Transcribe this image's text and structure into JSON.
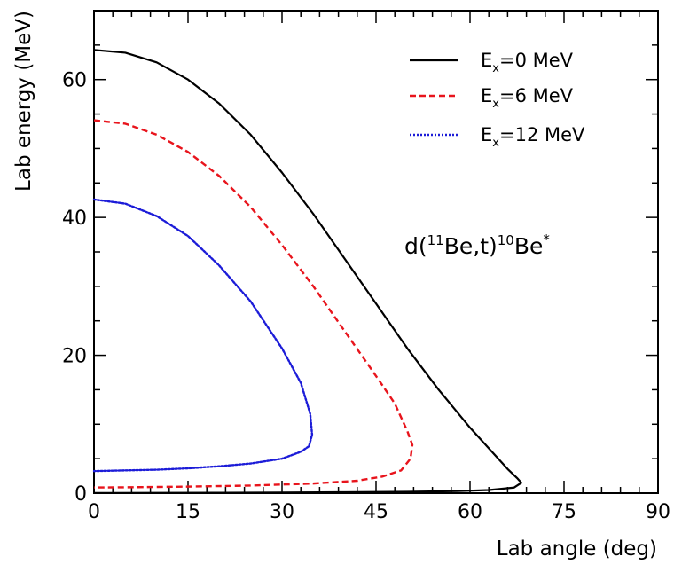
{
  "chart_data": {
    "type": "line",
    "xlabel": "Lab angle (deg)",
    "ylabel": "Lab energy (MeV)",
    "xlim": [
      0,
      90
    ],
    "ylim": [
      0,
      70
    ],
    "x_ticks": [
      0,
      15,
      30,
      45,
      60,
      75,
      90
    ],
    "y_ticks": [
      0,
      20,
      40,
      60
    ],
    "x_tick_labels": [
      "0",
      "15",
      "30",
      "45",
      "60",
      "75",
      "90"
    ],
    "y_tick_labels": [
      "0",
      "20",
      "40",
      "60"
    ],
    "grid": false,
    "legend_position": "top-right",
    "annotation": {
      "prefix": "d(",
      "projectile_mass": "11",
      "projectile": "Be,t)",
      "residual_mass": "10",
      "residual": "Be",
      "excited_mark": "*"
    },
    "series": [
      {
        "legend_main": "E",
        "legend_sub": "x",
        "legend_rest": "=0 MeV",
        "color": "#000000",
        "line_style": "solid",
        "points": [
          [
            0,
            64.3
          ],
          [
            5,
            63.9
          ],
          [
            10,
            62.5
          ],
          [
            15,
            60.0
          ],
          [
            20,
            56.5
          ],
          [
            25,
            52.0
          ],
          [
            30,
            46.5
          ],
          [
            35,
            40.5
          ],
          [
            40,
            34.0
          ],
          [
            45,
            27.5
          ],
          [
            50,
            21.0
          ],
          [
            55,
            15.0
          ],
          [
            60,
            9.5
          ],
          [
            64,
            5.5
          ],
          [
            66,
            3.5
          ],
          [
            67.5,
            2.2
          ],
          [
            68.2,
            1.5
          ],
          [
            67,
            0.8
          ],
          [
            63,
            0.45
          ],
          [
            58,
            0.3
          ],
          [
            50,
            0.2
          ],
          [
            40,
            0.13
          ],
          [
            30,
            0.08
          ],
          [
            20,
            0.05
          ],
          [
            10,
            0.03
          ],
          [
            0,
            0.02
          ]
        ]
      },
      {
        "legend_main": "E",
        "legend_sub": "x",
        "legend_rest": "=6 MeV",
        "color": "#e8141c",
        "line_style": "dashed",
        "points": [
          [
            0,
            54.1
          ],
          [
            5,
            53.6
          ],
          [
            10,
            52.0
          ],
          [
            15,
            49.5
          ],
          [
            20,
            46.0
          ],
          [
            25,
            41.5
          ],
          [
            30,
            36.0
          ],
          [
            35,
            30.0
          ],
          [
            40,
            23.5
          ],
          [
            45,
            17.0
          ],
          [
            48,
            13.0
          ],
          [
            50,
            9.0
          ],
          [
            50.8,
            7.0
          ],
          [
            50.5,
            5.0
          ],
          [
            49,
            3.3
          ],
          [
            46,
            2.4
          ],
          [
            42,
            1.8
          ],
          [
            35,
            1.4
          ],
          [
            25,
            1.1
          ],
          [
            15,
            0.95
          ],
          [
            5,
            0.85
          ],
          [
            0,
            0.82
          ]
        ]
      },
      {
        "legend_main": "E",
        "legend_sub": "x",
        "legend_rest": "=12 MeV",
        "color": "#1c1cd8",
        "line_style": "dotted",
        "points": [
          [
            0,
            42.6
          ],
          [
            5,
            42.0
          ],
          [
            10,
            40.2
          ],
          [
            15,
            37.3
          ],
          [
            20,
            33.0
          ],
          [
            25,
            27.8
          ],
          [
            30,
            21.0
          ],
          [
            33,
            16.0
          ],
          [
            34.5,
            11.5
          ],
          [
            34.8,
            8.5
          ],
          [
            34.3,
            6.8
          ],
          [
            33,
            6.0
          ],
          [
            30,
            5.0
          ],
          [
            25,
            4.3
          ],
          [
            20,
            3.9
          ],
          [
            15,
            3.6
          ],
          [
            10,
            3.4
          ],
          [
            5,
            3.3
          ],
          [
            0,
            3.2
          ]
        ]
      }
    ]
  }
}
